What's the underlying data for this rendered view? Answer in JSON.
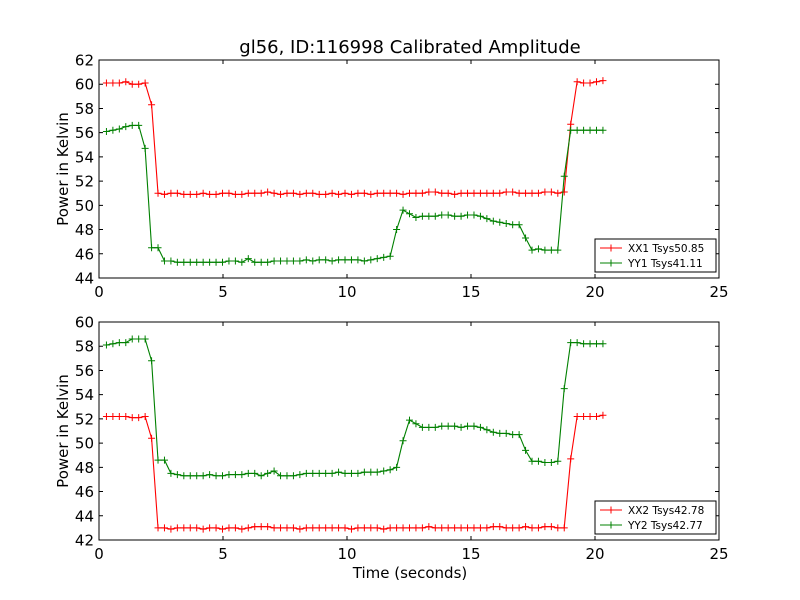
{
  "chart_data": [
    {
      "type": "line",
      "title": "gl56, ID:116998 Calibrated Amplitude",
      "xlabel": "",
      "ylabel": "Power in Kelvin",
      "xlim": [
        0,
        25
      ],
      "ylim": [
        44,
        62
      ],
      "xticks": [
        0,
        5,
        10,
        15,
        20,
        25
      ],
      "yticks": [
        44,
        46,
        48,
        50,
        52,
        54,
        56,
        58,
        60,
        62
      ],
      "legend_position": "lower-right",
      "x": [
        0.3,
        0.56,
        0.82,
        1.08,
        1.34,
        1.6,
        1.86,
        2.12,
        2.38,
        2.64,
        2.9,
        3.16,
        3.42,
        3.68,
        3.94,
        4.2,
        4.46,
        4.72,
        4.98,
        5.24,
        5.5,
        5.76,
        6.02,
        6.28,
        6.54,
        6.8,
        7.06,
        7.32,
        7.58,
        7.84,
        8.1,
        8.36,
        8.62,
        8.88,
        9.14,
        9.4,
        9.66,
        9.92,
        10.18,
        10.44,
        10.7,
        10.96,
        11.22,
        11.48,
        11.74,
        12.0,
        12.26,
        12.52,
        12.78,
        13.04,
        13.3,
        13.56,
        13.82,
        14.08,
        14.34,
        14.6,
        14.86,
        15.12,
        15.38,
        15.64,
        15.9,
        16.16,
        16.42,
        16.68,
        16.94,
        17.2,
        17.46,
        17.72,
        17.98,
        18.24,
        18.5,
        18.76,
        19.02,
        19.28,
        19.54,
        19.8,
        20.06,
        20.32
      ],
      "series": [
        {
          "name": "XX1 Tsys50.85",
          "color": "#ff0000",
          "values": [
            60.1,
            60.1,
            60.1,
            60.2,
            60.0,
            60.0,
            60.1,
            58.3,
            51.0,
            50.9,
            51.0,
            51.0,
            50.9,
            50.9,
            50.9,
            51.0,
            50.9,
            50.9,
            51.0,
            51.0,
            50.9,
            50.9,
            51.0,
            51.0,
            51.0,
            51.1,
            51.0,
            50.9,
            51.0,
            51.0,
            50.9,
            51.0,
            51.0,
            50.9,
            50.9,
            51.0,
            50.9,
            51.0,
            50.9,
            51.0,
            51.0,
            50.9,
            51.0,
            51.0,
            51.0,
            51.0,
            50.9,
            51.0,
            51.0,
            51.0,
            51.1,
            51.1,
            51.0,
            51.0,
            50.9,
            51.0,
            51.0,
            51.0,
            51.0,
            51.0,
            51.0,
            51.0,
            51.1,
            51.1,
            51.0,
            51.0,
            51.0,
            51.0,
            51.1,
            51.1,
            51.0,
            51.1,
            56.7,
            60.2,
            60.1,
            60.1,
            60.2,
            60.3
          ]
        },
        {
          "name": "YY1 Tsys41.11",
          "color": "#008000",
          "values": [
            56.1,
            56.2,
            56.3,
            56.5,
            56.6,
            56.6,
            54.7,
            46.5,
            46.5,
            45.4,
            45.4,
            45.3,
            45.3,
            45.3,
            45.3,
            45.3,
            45.3,
            45.3,
            45.3,
            45.4,
            45.4,
            45.3,
            45.6,
            45.3,
            45.3,
            45.3,
            45.4,
            45.4,
            45.4,
            45.4,
            45.4,
            45.5,
            45.4,
            45.5,
            45.5,
            45.4,
            45.5,
            45.5,
            45.5,
            45.5,
            45.4,
            45.5,
            45.6,
            45.7,
            45.8,
            48.0,
            49.6,
            49.3,
            49.0,
            49.1,
            49.1,
            49.1,
            49.2,
            49.2,
            49.1,
            49.1,
            49.2,
            49.2,
            49.1,
            48.9,
            48.7,
            48.6,
            48.5,
            48.4,
            48.4,
            47.3,
            46.3,
            46.4,
            46.3,
            46.3,
            46.3,
            52.4,
            56.2,
            56.2,
            56.2,
            56.2,
            56.2,
            56.2
          ]
        }
      ]
    },
    {
      "type": "line",
      "title": "",
      "xlabel": "Time (seconds)",
      "ylabel": "Power in Kelvin",
      "xlim": [
        0,
        25
      ],
      "ylim": [
        42,
        60
      ],
      "xticks": [
        0,
        5,
        10,
        15,
        20,
        25
      ],
      "yticks": [
        42,
        44,
        46,
        48,
        50,
        52,
        54,
        56,
        58,
        60
      ],
      "legend_position": "lower-right",
      "x": [
        0.3,
        0.56,
        0.82,
        1.08,
        1.34,
        1.6,
        1.86,
        2.12,
        2.38,
        2.64,
        2.9,
        3.16,
        3.42,
        3.68,
        3.94,
        4.2,
        4.46,
        4.72,
        4.98,
        5.24,
        5.5,
        5.76,
        6.02,
        6.28,
        6.54,
        6.8,
        7.06,
        7.32,
        7.58,
        7.84,
        8.1,
        8.36,
        8.62,
        8.88,
        9.14,
        9.4,
        9.66,
        9.92,
        10.18,
        10.44,
        10.7,
        10.96,
        11.22,
        11.48,
        11.74,
        12.0,
        12.26,
        12.52,
        12.78,
        13.04,
        13.3,
        13.56,
        13.82,
        14.08,
        14.34,
        14.6,
        14.86,
        15.12,
        15.38,
        15.64,
        15.9,
        16.16,
        16.42,
        16.68,
        16.94,
        17.2,
        17.46,
        17.72,
        17.98,
        18.24,
        18.5,
        18.76,
        19.02,
        19.28,
        19.54,
        19.8,
        20.06,
        20.32
      ],
      "series": [
        {
          "name": "XX2 Tsys42.78",
          "color": "#ff0000",
          "values": [
            52.2,
            52.2,
            52.2,
            52.2,
            52.1,
            52.1,
            52.2,
            50.4,
            43.0,
            43.0,
            42.9,
            43.0,
            43.0,
            43.0,
            43.0,
            42.9,
            43.0,
            43.0,
            42.9,
            43.0,
            43.0,
            42.9,
            43.0,
            43.1,
            43.1,
            43.1,
            43.0,
            43.0,
            43.0,
            43.0,
            42.9,
            43.0,
            43.0,
            43.0,
            43.0,
            43.0,
            43.0,
            43.0,
            42.9,
            43.0,
            43.0,
            43.0,
            43.0,
            42.9,
            43.0,
            43.0,
            43.0,
            43.0,
            43.0,
            43.0,
            43.1,
            43.0,
            43.0,
            43.0,
            43.0,
            43.0,
            43.0,
            43.0,
            43.0,
            43.0,
            43.1,
            43.1,
            43.0,
            43.0,
            43.0,
            43.1,
            43.0,
            43.0,
            43.1,
            43.1,
            43.0,
            43.0,
            48.7,
            52.2,
            52.2,
            52.2,
            52.2,
            52.3
          ]
        },
        {
          "name": "YY2 Tsys42.77",
          "color": "#008000",
          "values": [
            58.1,
            58.2,
            58.3,
            58.3,
            58.6,
            58.6,
            58.6,
            56.8,
            48.6,
            48.6,
            47.5,
            47.4,
            47.3,
            47.3,
            47.3,
            47.3,
            47.4,
            47.3,
            47.3,
            47.4,
            47.4,
            47.4,
            47.5,
            47.5,
            47.3,
            47.5,
            47.7,
            47.3,
            47.3,
            47.3,
            47.4,
            47.5,
            47.5,
            47.5,
            47.5,
            47.5,
            47.6,
            47.5,
            47.5,
            47.5,
            47.6,
            47.6,
            47.6,
            47.7,
            47.8,
            48.0,
            50.2,
            51.9,
            51.6,
            51.3,
            51.3,
            51.3,
            51.4,
            51.4,
            51.4,
            51.3,
            51.4,
            51.4,
            51.3,
            51.1,
            50.9,
            50.8,
            50.8,
            50.7,
            50.7,
            49.4,
            48.5,
            48.5,
            48.4,
            48.4,
            48.5,
            54.5,
            58.3,
            58.3,
            58.2,
            58.2,
            58.2,
            58.2
          ]
        }
      ]
    }
  ]
}
